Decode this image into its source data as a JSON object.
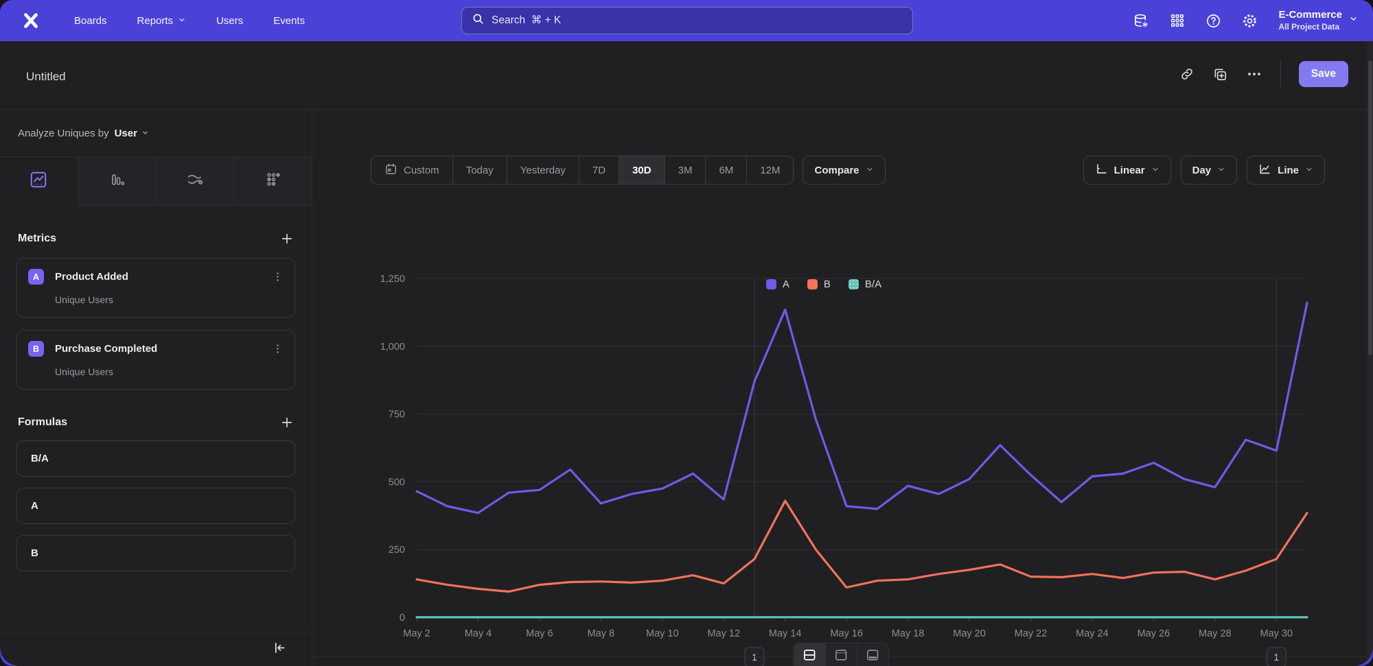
{
  "navbar": {
    "brand": "Mixpanel",
    "items": [
      {
        "label": "Boards",
        "has_chevron": false
      },
      {
        "label": "Reports",
        "has_chevron": true
      },
      {
        "label": "Users",
        "has_chevron": false
      },
      {
        "label": "Events",
        "has_chevron": false
      }
    ],
    "search": {
      "placeholder": "Search  ⌘ + K"
    },
    "project": {
      "name": "E-Commerce",
      "subtitle": "All Project Data"
    }
  },
  "report_bar": {
    "title": "Untitled",
    "more_label": "…",
    "save_label": "Save"
  },
  "sidebar": {
    "analyze": {
      "prefix": "Analyze Uniques by",
      "value": "User"
    },
    "chart_tabs": [
      "line-chart",
      "bar-chart",
      "flows",
      "retention-grid"
    ],
    "metrics": {
      "title": "Metrics",
      "add_label": "+",
      "items": [
        {
          "letter": "A",
          "name": "Product Added",
          "subtitle": "Unique Users"
        },
        {
          "letter": "B",
          "name": "Purchase Completed",
          "subtitle": "Unique Users"
        }
      ]
    },
    "formulas": {
      "title": "Formulas",
      "add_label": "+",
      "items": [
        {
          "name": "B/A"
        },
        {
          "name": "A"
        },
        {
          "name": "B"
        }
      ]
    }
  },
  "toolbar": {
    "date_ranges": [
      {
        "label": "Custom"
      },
      {
        "label": "Today"
      },
      {
        "label": "Yesterday"
      },
      {
        "label": "7D"
      },
      {
        "label": "30D"
      },
      {
        "label": "3M"
      },
      {
        "label": "6M"
      },
      {
        "label": "12M"
      }
    ],
    "active_range": "30D",
    "compare_label": "Compare",
    "scale_label": "Linear",
    "interval_label": "Day",
    "chart_type_label": "Line"
  },
  "chart_data": {
    "type": "line",
    "title": "",
    "x": [
      "May 2",
      "May 3",
      "May 4",
      "May 5",
      "May 6",
      "May 7",
      "May 8",
      "May 9",
      "May 10",
      "May 11",
      "May 12",
      "May 13",
      "May 14",
      "May 15",
      "May 16",
      "May 17",
      "May 18",
      "May 19",
      "May 20",
      "May 21",
      "May 22",
      "May 23",
      "May 24",
      "May 25",
      "May 26",
      "May 27",
      "May 28",
      "May 29",
      "May 30",
      "May 31"
    ],
    "xtick_every": 2,
    "ylim": [
      0,
      1250
    ],
    "yticks": [
      0,
      250,
      500,
      750,
      1000,
      1250
    ],
    "ytick_labels": [
      "0",
      "250",
      "500",
      "750",
      "1,000",
      "1,250"
    ],
    "grid": true,
    "legend_position": "top",
    "series": [
      {
        "name": "A",
        "color": "#6e5bea",
        "values": [
          465,
          410,
          385,
          460,
          470,
          545,
          420,
          455,
          475,
          530,
          435,
          870,
          1135,
          730,
          410,
          400,
          485,
          455,
          510,
          635,
          525,
          425,
          520,
          530,
          570,
          510,
          480,
          655,
          615,
          1160
        ]
      },
      {
        "name": "B",
        "color": "#f2735a",
        "values": [
          140,
          120,
          105,
          95,
          120,
          130,
          132,
          128,
          135,
          155,
          125,
          215,
          430,
          250,
          110,
          135,
          140,
          160,
          175,
          195,
          150,
          148,
          160,
          145,
          165,
          168,
          140,
          172,
          215,
          385
        ]
      },
      {
        "name": "B/A",
        "color": "#5fc4b8",
        "values": [
          0.3,
          0.29,
          0.27,
          0.21,
          0.26,
          0.24,
          0.31,
          0.28,
          0.28,
          0.29,
          0.29,
          0.25,
          0.38,
          0.34,
          0.27,
          0.34,
          0.29,
          0.35,
          0.34,
          0.31,
          0.29,
          0.35,
          0.31,
          0.27,
          0.29,
          0.33,
          0.29,
          0.26,
          0.35,
          0.33
        ]
      }
    ],
    "annotations": [
      {
        "x_label": "May 13",
        "badge": "1"
      },
      {
        "x_label": "May 30",
        "badge": "1"
      }
    ]
  },
  "footer": {
    "layout_options": [
      "split-horizontal",
      "header-panel",
      "bottom-panel"
    ]
  }
}
